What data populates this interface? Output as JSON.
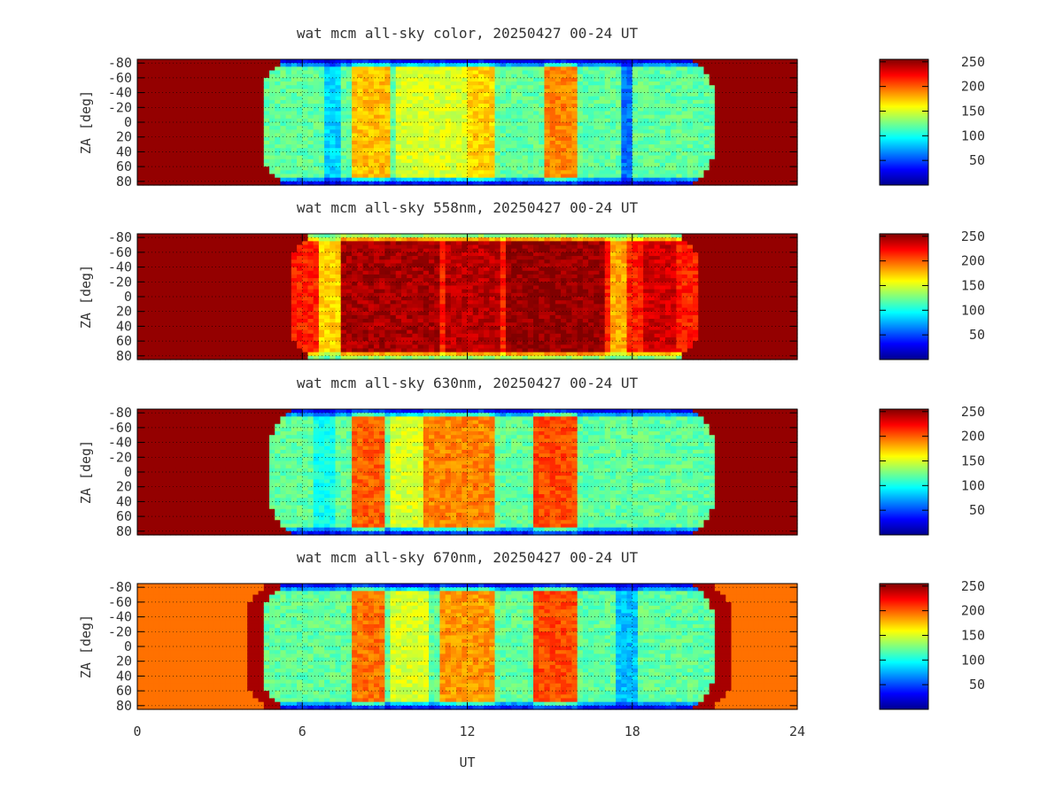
{
  "chart_data": [
    {
      "type": "heatmap",
      "title": "wat mcm all-sky color, 20250427 00-24 UT",
      "xlabel": "",
      "ylabel": "ZA [deg]",
      "xlim": [
        0,
        24
      ],
      "ylim": [
        -85,
        85
      ],
      "x_ticks": [
        "0",
        "6",
        "12",
        "18",
        "24"
      ],
      "y_ticks": [
        "-80",
        "-60",
        "-40",
        "-20",
        "0",
        "20",
        "40",
        "60",
        "80"
      ],
      "y_tick_values": [
        -80,
        -60,
        -40,
        -20,
        0,
        20,
        40,
        60,
        80
      ],
      "colorbar": {
        "range": [
          0,
          255
        ],
        "ticks": [
          "50",
          "100",
          "150",
          "200",
          "250"
        ],
        "tick_values": [
          50,
          100,
          150,
          200,
          250
        ],
        "colormap": "jet"
      },
      "grid": true,
      "daytime_ut": [
        4.5,
        21.0
      ],
      "daytime_value": 250,
      "edge_value": 10,
      "background_value": 120,
      "bands": [
        {
          "ut_start": 7.8,
          "ut_end": 9.2,
          "value": 175
        },
        {
          "ut_start": 12.0,
          "ut_end": 13.0,
          "value": 170
        },
        {
          "ut_start": 14.8,
          "ut_end": 16.0,
          "value": 190
        },
        {
          "ut_start": 9.5,
          "ut_end": 12.0,
          "value": 150
        },
        {
          "ut_start": 6.8,
          "ut_end": 7.3,
          "value": 85
        },
        {
          "ut_start": 17.6,
          "ut_end": 18.0,
          "value": 60
        }
      ]
    },
    {
      "type": "heatmap",
      "title": "wat mcm all-sky 558nm, 20250427 00-24 UT",
      "xlabel": "",
      "ylabel": "ZA [deg]",
      "xlim": [
        0,
        24
      ],
      "ylim": [
        -85,
        85
      ],
      "x_ticks": [
        "0",
        "6",
        "12",
        "18",
        "24"
      ],
      "y_ticks": [
        "-80",
        "-60",
        "-40",
        "-20",
        "0",
        "20",
        "40",
        "60",
        "80"
      ],
      "y_tick_values": [
        -80,
        -60,
        -40,
        -20,
        0,
        20,
        40,
        60,
        80
      ],
      "colorbar": {
        "range": [
          0,
          255
        ],
        "ticks": [
          "50",
          "100",
          "150",
          "200",
          "250"
        ],
        "tick_values": [
          50,
          100,
          150,
          200,
          250
        ],
        "colormap": "jet"
      },
      "grid": true,
      "daytime_ut": [
        5.5,
        20.5
      ],
      "daytime_value": 250,
      "edge_value": 110,
      "background_value": 215,
      "bands": [
        {
          "ut_start": 7.5,
          "ut_end": 11.0,
          "value": 245
        },
        {
          "ut_start": 11.3,
          "ut_end": 13.2,
          "value": 240
        },
        {
          "ut_start": 13.5,
          "ut_end": 17.0,
          "value": 250
        },
        {
          "ut_start": 18.3,
          "ut_end": 19.5,
          "value": 235
        },
        {
          "ut_start": 6.7,
          "ut_end": 7.3,
          "value": 170
        },
        {
          "ut_start": 17.2,
          "ut_end": 17.8,
          "value": 180
        }
      ]
    },
    {
      "type": "heatmap",
      "title": "wat mcm all-sky 630nm, 20250427 00-24 UT",
      "xlabel": "",
      "ylabel": "ZA [deg]",
      "xlim": [
        0,
        24
      ],
      "ylim": [
        -85,
        85
      ],
      "x_ticks": [
        "0",
        "6",
        "12",
        "18",
        "24"
      ],
      "y_ticks": [
        "-80",
        "-60",
        "-40",
        "-20",
        "0",
        "20",
        "40",
        "60",
        "80"
      ],
      "y_tick_values": [
        -80,
        -60,
        -40,
        -20,
        0,
        20,
        40,
        60,
        80
      ],
      "colorbar": {
        "range": [
          0,
          255
        ],
        "ticks": [
          "50",
          "100",
          "150",
          "200",
          "250"
        ],
        "tick_values": [
          50,
          100,
          150,
          200,
          250
        ],
        "colormap": "jet"
      },
      "grid": true,
      "daytime_ut": [
        4.8,
        21.0
      ],
      "daytime_value": 250,
      "edge_value": 15,
      "background_value": 120,
      "bands": [
        {
          "ut_start": 7.8,
          "ut_end": 9.0,
          "value": 200
        },
        {
          "ut_start": 10.5,
          "ut_end": 13.0,
          "value": 190
        },
        {
          "ut_start": 14.5,
          "ut_end": 16.0,
          "value": 205
        },
        {
          "ut_start": 9.3,
          "ut_end": 10.3,
          "value": 150
        },
        {
          "ut_start": 6.5,
          "ut_end": 7.2,
          "value": 100
        }
      ]
    },
    {
      "type": "heatmap",
      "title": "wat mcm all-sky 670nm, 20250427 00-24 UT",
      "xlabel": "UT",
      "ylabel": "ZA [deg]",
      "xlim": [
        0,
        24
      ],
      "ylim": [
        -85,
        85
      ],
      "x_ticks": [
        "0",
        "6",
        "12",
        "18",
        "24"
      ],
      "y_ticks": [
        "-80",
        "-60",
        "-40",
        "-20",
        "0",
        "20",
        "40",
        "60",
        "80"
      ],
      "y_tick_values": [
        -80,
        -60,
        -40,
        -20,
        0,
        20,
        40,
        60,
        80
      ],
      "colorbar": {
        "range": [
          0,
          255
        ],
        "ticks": [
          "50",
          "100",
          "150",
          "200",
          "250"
        ],
        "tick_values": [
          50,
          100,
          150,
          200,
          250
        ],
        "colormap": "jet"
      },
      "grid": true,
      "daytime_ut": [
        4.5,
        21.0
      ],
      "daytime_value": 195,
      "twilight_value": 245,
      "edge_value": 15,
      "background_value": 120,
      "bands": [
        {
          "ut_start": 7.8,
          "ut_end": 9.0,
          "value": 195
        },
        {
          "ut_start": 11.0,
          "ut_end": 13.0,
          "value": 185
        },
        {
          "ut_start": 14.5,
          "ut_end": 16.0,
          "value": 205
        },
        {
          "ut_start": 9.3,
          "ut_end": 10.5,
          "value": 150
        },
        {
          "ut_start": 17.5,
          "ut_end": 18.1,
          "value": 80
        }
      ]
    }
  ]
}
